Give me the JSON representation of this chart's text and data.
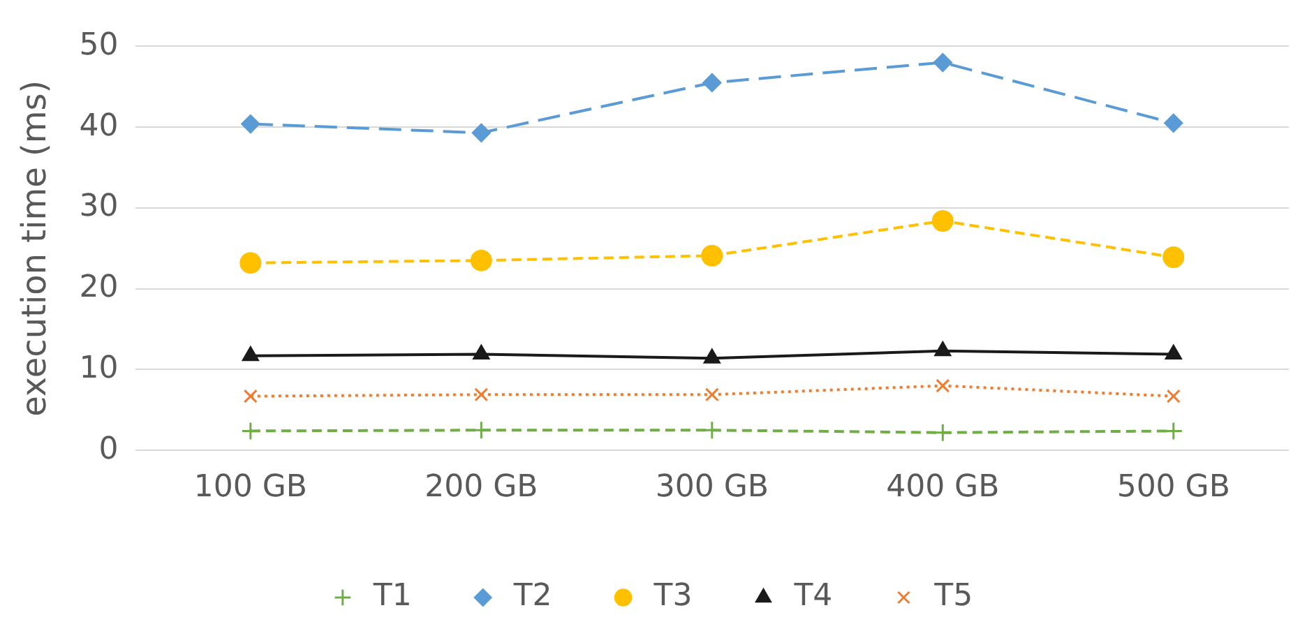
{
  "chart_data": {
    "type": "line",
    "ylabel": "execution time (ms)",
    "categories": [
      "100 GB",
      "200 GB",
      "300 GB",
      "400 GB",
      "500 GB"
    ],
    "ylim": [
      0,
      50
    ],
    "yticks": [
      0,
      10,
      20,
      30,
      40,
      50
    ],
    "grid": "y",
    "legend": "bottom",
    "series": [
      {
        "name": "T1",
        "color": "#70ad47",
        "marker": "plus",
        "line_style": "dashed",
        "values": [
          2.4,
          2.5,
          2.5,
          2.2,
          2.4
        ]
      },
      {
        "name": "T2",
        "color": "#5b9bd5",
        "marker": "diamond",
        "line_style": "longdash",
        "values": [
          40.4,
          39.3,
          45.5,
          48.0,
          40.5
        ]
      },
      {
        "name": "T3",
        "color": "#ffc000",
        "marker": "circle",
        "line_style": "dashed",
        "values": [
          23.2,
          23.5,
          24.1,
          28.4,
          23.9
        ]
      },
      {
        "name": "T4",
        "color": "#1a1a1a",
        "marker": "triangle",
        "line_style": "solid",
        "values": [
          11.7,
          11.9,
          11.4,
          12.3,
          11.9
        ]
      },
      {
        "name": "T5",
        "color": "#ed7d31",
        "marker": "x",
        "line_style": "dotted",
        "values": [
          6.7,
          6.9,
          6.9,
          8.0,
          6.7
        ]
      }
    ]
  }
}
